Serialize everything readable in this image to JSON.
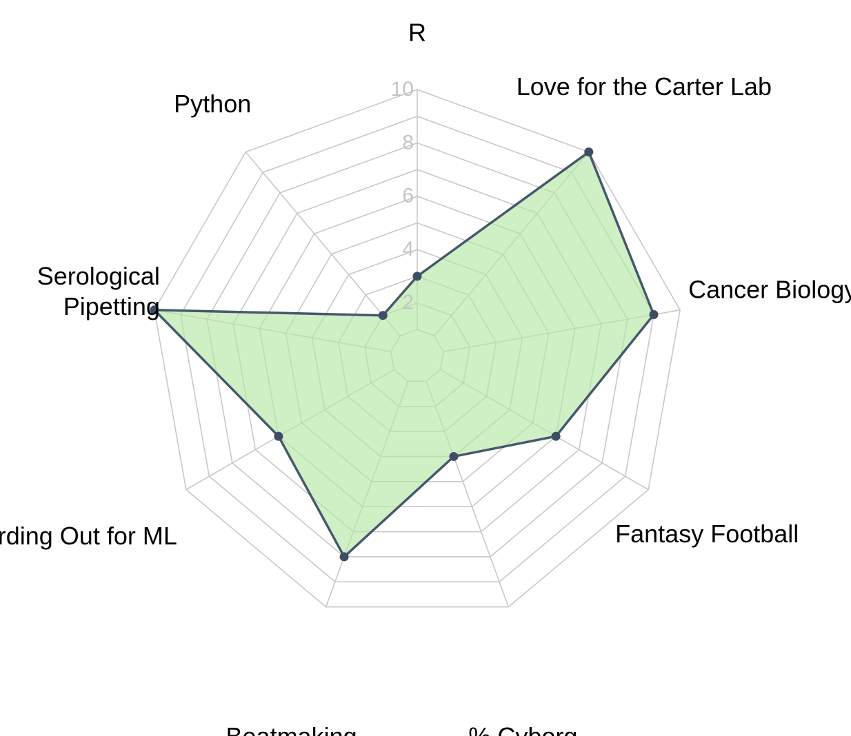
{
  "chart_data": {
    "type": "radar",
    "categories": [
      "R",
      "Love for the Carter Lab",
      "Cancer Biology",
      "Fantasy Football",
      "% Cyborg",
      "Beatmaking",
      "Nerding Out for ML",
      "Serological Pipetting",
      "Python"
    ],
    "label_lines": [
      [
        "R"
      ],
      [
        "Love for the Carter Lab"
      ],
      [
        "Cancer Biology"
      ],
      [
        "Fantasy Football"
      ],
      [
        "% Cyborg"
      ],
      [
        "Beatmaking"
      ],
      [
        "Nerding Out for ML"
      ],
      [
        "Serological",
        "Pipetting"
      ],
      [
        "Python"
      ]
    ],
    "values": [
      3,
      10,
      9,
      6,
      4,
      8,
      6,
      10,
      2
    ],
    "rlim": [
      0,
      10
    ],
    "ticks": [
      2,
      4,
      6,
      8,
      10
    ],
    "tick_labels": [
      "2",
      "4",
      "6",
      "8",
      "10"
    ],
    "grid_levels": [
      1,
      2,
      3,
      4,
      5,
      6,
      7,
      8,
      9,
      10
    ],
    "grid": true,
    "colors": {
      "fill": "#b6e6a6",
      "line": "#46586e",
      "point": "#3d4e63",
      "grid": "#c8c8c8",
      "tick_text": "#c4c4c4"
    }
  }
}
